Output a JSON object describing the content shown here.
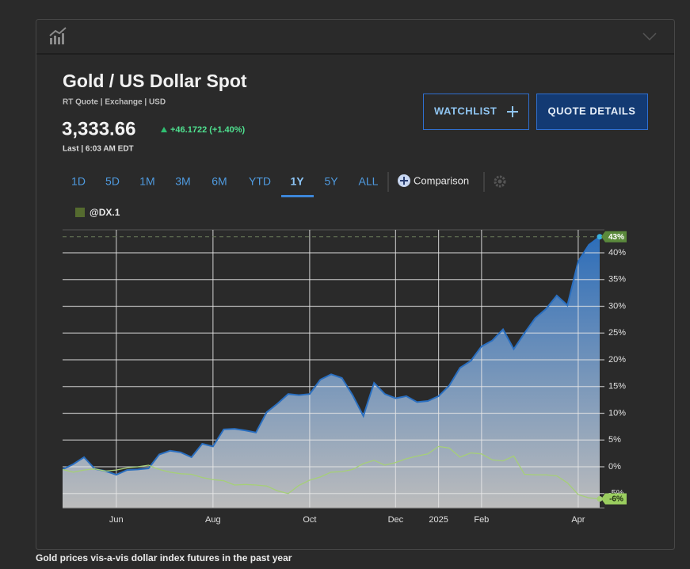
{
  "quote": {
    "title": "Gold / US Dollar Spot",
    "subtitle": "RT Quote | Exchange | USD",
    "price": "3,333.66",
    "change": "+46.1722 (+1.40%)",
    "last": "Last | 6:03 AM EDT"
  },
  "buttons": {
    "watchlist": "WATCHLIST",
    "details": "QUOTE DETAILS"
  },
  "tabs": [
    "1D",
    "5D",
    "1M",
    "3M",
    "6M",
    "YTD",
    "1Y",
    "5Y",
    "ALL"
  ],
  "active_tab": 6,
  "comparison": "Comparison",
  "caption": "Gold prices vis-a-vis dollar index futures in the past year",
  "chart_data": {
    "type": "line",
    "categories": [
      null,
      null,
      null,
      null,
      null,
      "Jun",
      null,
      null,
      null,
      null,
      null,
      null,
      null,
      null,
      "Aug",
      null,
      null,
      null,
      null,
      null,
      null,
      null,
      null,
      "Oct",
      null,
      null,
      null,
      null,
      null,
      null,
      null,
      "Dec",
      null,
      null,
      null,
      "2025",
      null,
      null,
      null,
      "Feb",
      null,
      null,
      null,
      null,
      null,
      null,
      null,
      null,
      "Apr",
      null,
      null
    ],
    "series": [
      {
        "color": "#2a6fc0",
        "area": true,
        "values": [
          -0.5,
          0.5,
          1.8,
          -0.4,
          -0.8,
          -1.5,
          -0.6,
          -0.5,
          -0.3,
          2.3,
          3.0,
          2.7,
          1.8,
          4.3,
          3.8,
          7.0,
          7.1,
          6.8,
          6.4,
          10.2,
          11.8,
          13.6,
          13.4,
          13.6,
          16.3,
          17.3,
          16.6,
          13.4,
          9.5,
          15.7,
          13.6,
          12.8,
          13.2,
          12.1,
          12.3,
          13.2,
          15.2,
          18.5,
          19.8,
          22.5,
          23.6,
          25.7,
          22.0,
          25.0,
          27.8,
          29.5,
          32.0,
          30.2,
          38.4,
          41.5,
          43
        ],
        "value_labels": [
          null,
          null,
          null,
          null,
          null,
          null,
          null,
          null,
          null,
          null,
          null,
          null,
          null,
          null,
          null,
          null,
          null,
          null,
          null,
          null,
          null,
          null,
          null,
          null,
          null,
          null,
          null,
          null,
          null,
          null,
          null,
          null,
          null,
          null,
          null,
          null,
          null,
          null,
          null,
          null,
          null,
          null,
          null,
          null,
          null,
          null,
          null,
          null,
          null,
          null,
          "43%"
        ]
      },
      {
        "name": "@DX.1",
        "color": "#a6cf78",
        "legend_color": "#556b2f",
        "values": [
          -0.5,
          -1.0,
          -0.6,
          -0.4,
          -0.8,
          -0.6,
          -0.2,
          0.0,
          0.3,
          -0.5,
          -1.0,
          -1.3,
          -1.4,
          -2.0,
          -2.4,
          -2.6,
          -3.4,
          -3.3,
          -3.4,
          -3.6,
          -4.5,
          -5.0,
          -3.5,
          -2.5,
          -1.9,
          -1.0,
          -0.9,
          -0.5,
          0.6,
          1.2,
          0.3,
          0.8,
          1.5,
          2.0,
          2.4,
          3.8,
          3.5,
          1.8,
          2.6,
          2.4,
          1.3,
          1.1,
          2.0,
          -1.4,
          -1.5,
          -1.5,
          -1.7,
          -3.0,
          -5.2,
          -5.8,
          -6
        ],
        "value_labels": [
          null,
          null,
          null,
          null,
          null,
          null,
          null,
          null,
          null,
          null,
          null,
          null,
          null,
          null,
          null,
          null,
          null,
          null,
          null,
          null,
          null,
          null,
          null,
          null,
          null,
          null,
          null,
          null,
          null,
          null,
          null,
          null,
          null,
          null,
          null,
          null,
          null,
          null,
          null,
          null,
          null,
          null,
          null,
          null,
          null,
          null,
          null,
          null,
          null,
          null,
          "-6%"
        ]
      }
    ],
    "ylim": [
      -7.7,
      44.3
    ],
    "yticks": [
      {
        "value": -5,
        "label": "-5%"
      },
      {
        "value": 0,
        "label": "0%"
      },
      {
        "value": 5,
        "label": "5%"
      },
      {
        "value": 10,
        "label": "10%"
      },
      {
        "value": 15,
        "label": "15%"
      },
      {
        "value": 20,
        "label": "20%"
      },
      {
        "value": 25,
        "label": "25%"
      },
      {
        "value": 30,
        "label": "30%"
      },
      {
        "value": 35,
        "label": "35%"
      },
      {
        "value": 40,
        "label": "40%"
      }
    ],
    "grid": true
  }
}
